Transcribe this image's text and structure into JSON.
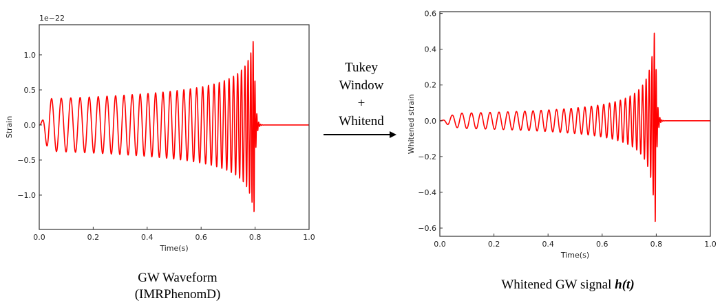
{
  "arrow": {
    "lines": [
      "Tukey",
      "Window",
      "+",
      "Whitend"
    ]
  },
  "captions": {
    "left": [
      "GW Waveform",
      "(IMRPhenomD)"
    ],
    "right": {
      "text": "Whitened GW signal ",
      "math": "h(t)"
    }
  },
  "colors": {
    "line": "#ff0000",
    "axes": "#333333"
  },
  "chart_data": [
    {
      "type": "line",
      "title": "",
      "xlabel": "Time(s)",
      "ylabel": "Strain",
      "offset_label": "1e−22",
      "xlim": [
        0,
        1.0
      ],
      "ylim": [
        -1.49,
        1.43
      ],
      "xticks": [
        "0.0",
        "0.2",
        "0.4",
        "0.6",
        "0.8",
        "1.0"
      ],
      "xtick_values": [
        0,
        0.2,
        0.4,
        0.6,
        0.8,
        1.0
      ],
      "yticks": [
        "−1.0",
        "−0.5",
        "0.0",
        "0.5",
        "1.0"
      ],
      "ytick_values": [
        -1.0,
        -0.5,
        0,
        0.5,
        1.0
      ],
      "series": [
        {
          "name": "GW waveform",
          "model": "chirp",
          "merger_time": 0.805,
          "start_freq_hz": 27,
          "amp_start": 0.37,
          "amp_exponent": 0.28,
          "peak_amplitude": 1.3,
          "min_amplitude": -1.35
        }
      ]
    },
    {
      "type": "line",
      "title": "",
      "xlabel": "Time(s)",
      "ylabel": "Whitened strain",
      "xlim": [
        0,
        1.0
      ],
      "ylim": [
        -0.646,
        0.61
      ],
      "xticks": [
        "0.0",
        "0.2",
        "0.4",
        "0.6",
        "0.8",
        "1.0"
      ],
      "xtick_values": [
        0,
        0.2,
        0.4,
        0.6,
        0.8,
        1.0
      ],
      "yticks": [
        "−0.6",
        "−0.4",
        "−0.2",
        "0.0",
        "0.2",
        "0.4",
        "0.6"
      ],
      "ytick_values": [
        -0.6,
        -0.4,
        -0.2,
        0,
        0.2,
        0.4,
        0.6
      ],
      "series": [
        {
          "name": "Whitened GW signal",
          "model": "chirp",
          "merger_time": 0.805,
          "start_freq_hz": 27,
          "amp_start": 0.04,
          "amp_exponent": 0.6,
          "peak_amplitude": 0.55,
          "min_amplitude": -0.59
        }
      ]
    }
  ]
}
